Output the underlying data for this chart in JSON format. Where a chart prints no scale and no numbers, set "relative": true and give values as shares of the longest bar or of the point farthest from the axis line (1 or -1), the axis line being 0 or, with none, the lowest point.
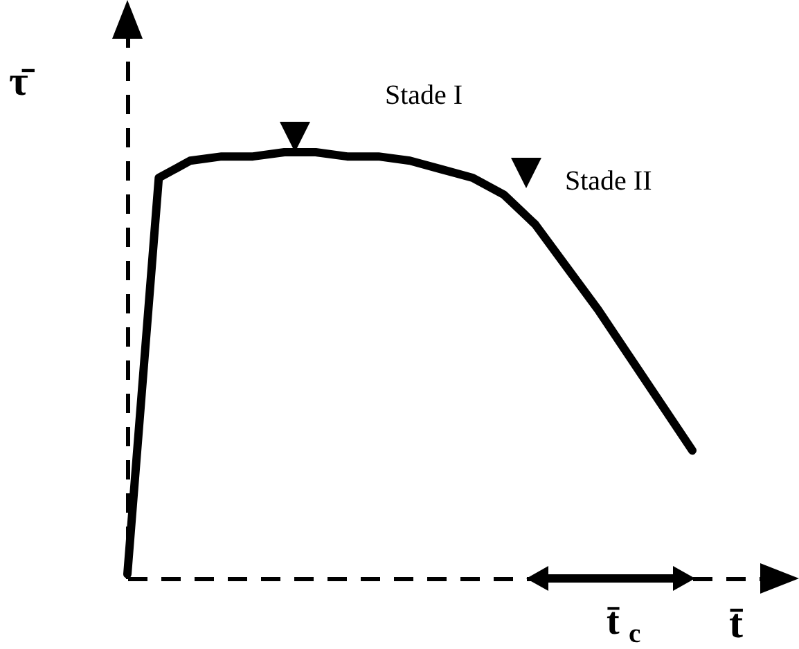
{
  "chart_data": {
    "type": "line",
    "relative": true,
    "xlabel": "t̄",
    "ylabel": "τ̄",
    "categories": [
      null,
      null,
      null,
      null,
      null,
      null,
      null,
      null,
      null,
      null,
      null,
      null,
      null,
      null,
      null,
      null,
      null,
      null,
      null
    ],
    "series": [
      {
        "color": "#000000",
        "values": [
          0.01,
          0.94,
          0.98,
          0.99,
          0.99,
          1.0,
          1.0,
          0.99,
          0.99,
          0.98,
          0.96,
          0.94,
          0.9,
          0.83,
          0.73,
          0.63,
          0.52,
          0.41,
          0.3
        ]
      }
    ],
    "annotations": [
      "Stade I",
      "Stade II",
      "t̄$_{c}$"
    ],
    "grid": false,
    "legend": false,
    "marker": "none",
    "line_style": "solid"
  }
}
